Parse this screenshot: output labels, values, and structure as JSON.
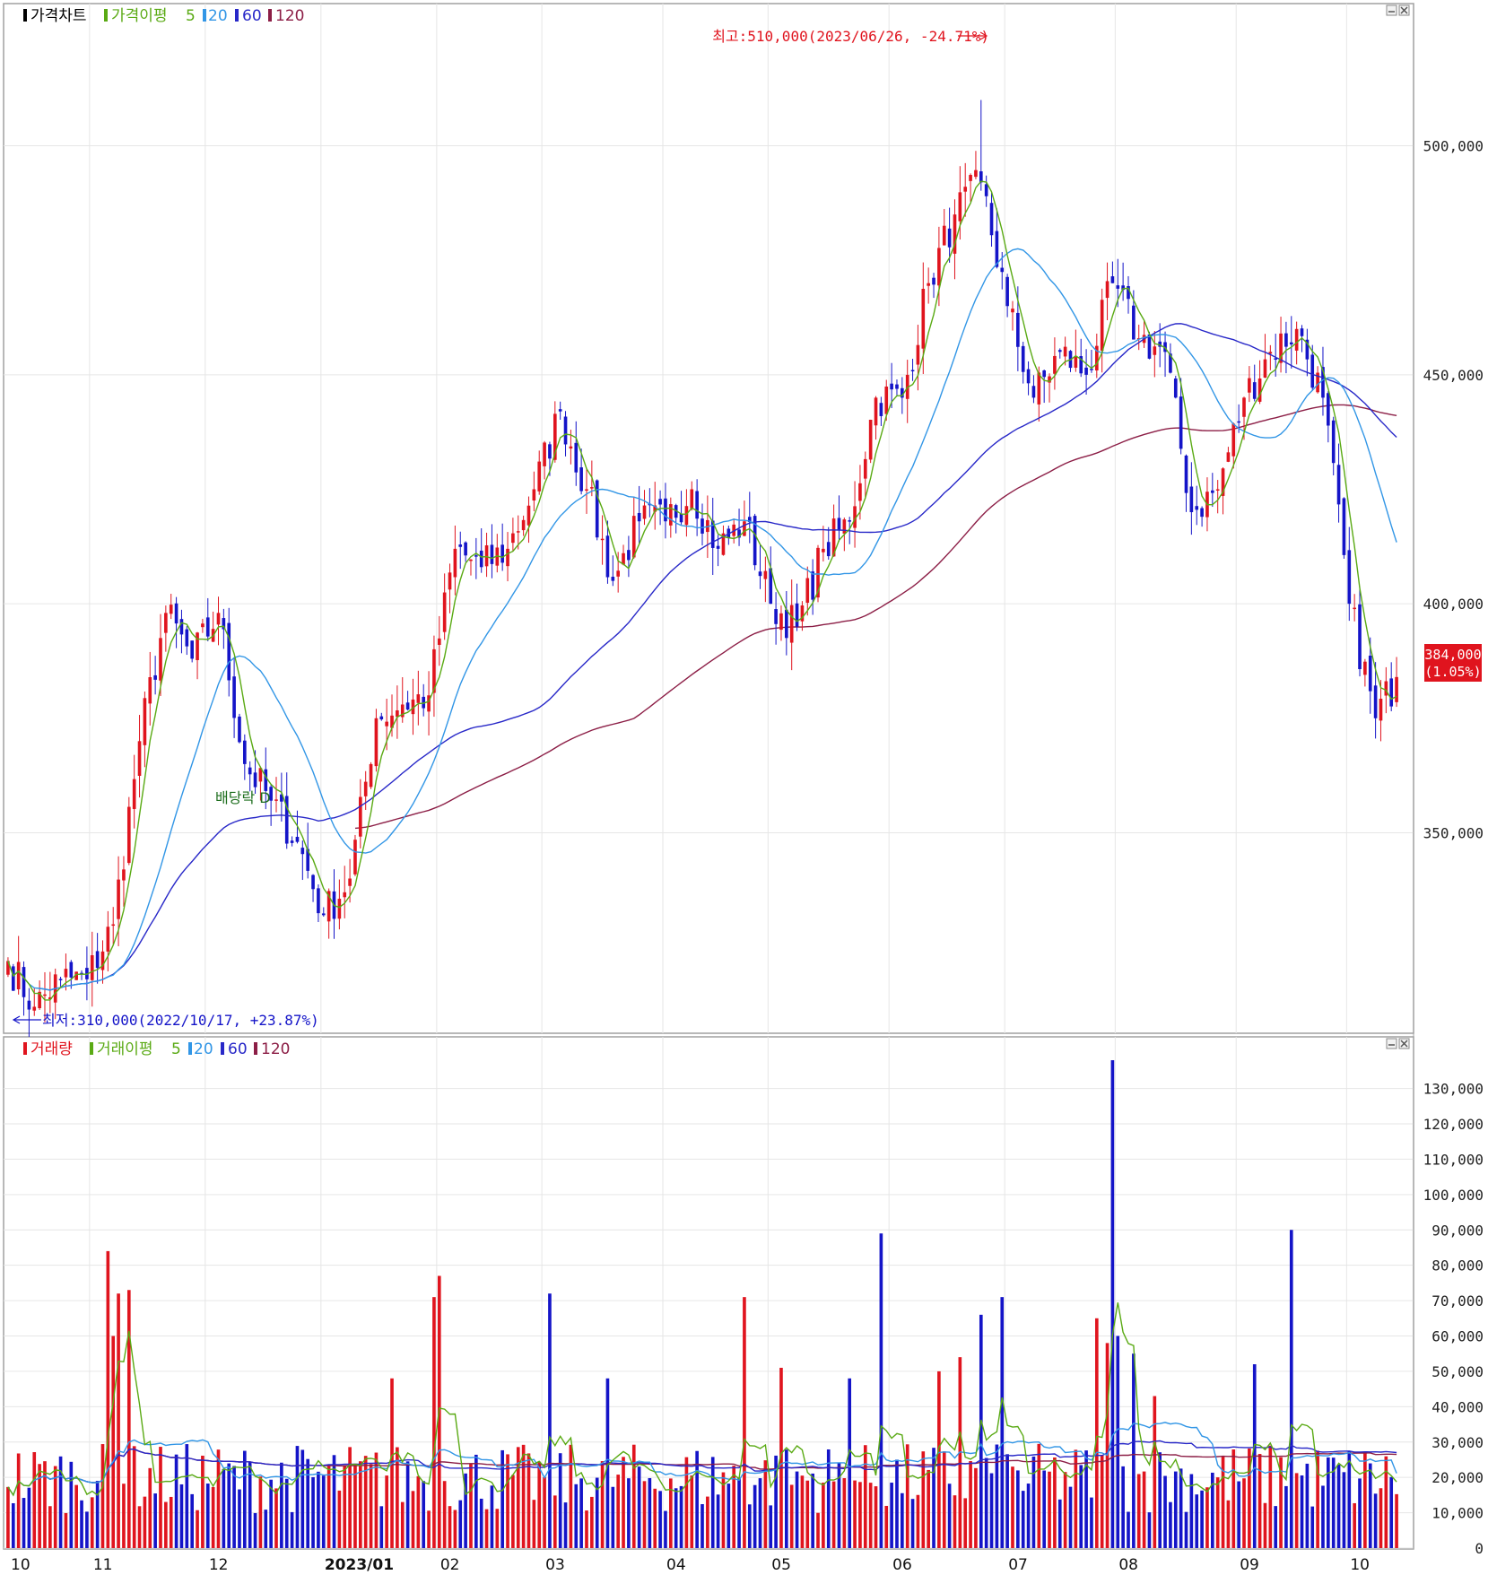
{
  "price_panel": {
    "legend": {
      "title": "가격차트",
      "ma_label": "가격이평",
      "ma_periods": [
        "5",
        "20",
        "60",
        "120"
      ]
    },
    "high_note": "최고:510,000(2023/06/26, -24.71%)",
    "low_note": "최저:310,000(2022/10/17, +23.87%)",
    "last_price": "384,000",
    "last_change": "(1.05%)",
    "marker_text": "배당락 D"
  },
  "volume_panel": {
    "legend": {
      "title": "거래량",
      "ma_label": "거래이평",
      "ma_periods": [
        "5",
        "20",
        "60",
        "120"
      ]
    }
  },
  "colors": {
    "up": "#e0141e",
    "down": "#1414c8",
    "ma5": "#5aaa14",
    "ma20": "#3296e6",
    "ma60": "#2828c8",
    "ma120": "#8c1e46",
    "grid": "#e6e6e6"
  },
  "chart_data": [
    {
      "type": "candlestick",
      "title": "가격차트",
      "y_ticks": [
        350000,
        400000,
        450000,
        500000
      ],
      "y_tick_labels": [
        "350,000",
        "400,000",
        "450,000",
        "500,000"
      ],
      "ylim": [
        307000,
        524000
      ],
      "x_tick_labels": [
        "10",
        "11",
        "12",
        "2023/01",
        "02",
        "03",
        "04",
        "05",
        "06",
        "07",
        "08",
        "09",
        "10"
      ],
      "grid": true,
      "waypoints": [
        [
          "2022-10-10",
          322000
        ],
        [
          "2022-10-17",
          312000
        ],
        [
          "2022-10-24",
          318000
        ],
        [
          "2022-10-31",
          318000
        ],
        [
          "2022-11-07",
          330000
        ],
        [
          "2022-11-14",
          370000
        ],
        [
          "2022-11-21",
          398000
        ],
        [
          "2022-11-28",
          388000
        ],
        [
          "2022-12-05",
          398000
        ],
        [
          "2022-12-12",
          365000
        ],
        [
          "2022-12-19",
          357000
        ],
        [
          "2022-12-26",
          348000
        ],
        [
          "2023-01-02",
          332000
        ],
        [
          "2023-01-09",
          340000
        ],
        [
          "2023-01-16",
          375000
        ],
        [
          "2023-01-23",
          378000
        ],
        [
          "2023-01-30",
          380000
        ],
        [
          "2023-02-06",
          412000
        ],
        [
          "2023-02-13",
          408000
        ],
        [
          "2023-02-20",
          412000
        ],
        [
          "2023-02-27",
          425000
        ],
        [
          "2023-03-06",
          442000
        ],
        [
          "2023-03-13",
          425000
        ],
        [
          "2023-03-20",
          405000
        ],
        [
          "2023-03-27",
          418000
        ],
        [
          "2023-04-03",
          418000
        ],
        [
          "2023-04-10",
          425000
        ],
        [
          "2023-04-17",
          412000
        ],
        [
          "2023-04-24",
          418000
        ],
        [
          "2023-05-01",
          400000
        ],
        [
          "2023-05-08",
          395000
        ],
        [
          "2023-05-15",
          412000
        ],
        [
          "2023-05-22",
          418000
        ],
        [
          "2023-05-29",
          445000
        ],
        [
          "2023-06-05",
          445000
        ],
        [
          "2023-06-12",
          470000
        ],
        [
          "2023-06-19",
          485000
        ],
        [
          "2023-06-26",
          492000
        ],
        [
          "2023-07-03",
          465000
        ],
        [
          "2023-07-10",
          445000
        ],
        [
          "2023-07-17",
          455000
        ],
        [
          "2023-07-24",
          450000
        ],
        [
          "2023-07-31",
          470000
        ],
        [
          "2023-08-07",
          458000
        ],
        [
          "2023-08-14",
          455000
        ],
        [
          "2023-08-21",
          420000
        ],
        [
          "2023-08-28",
          425000
        ],
        [
          "2023-09-04",
          445000
        ],
        [
          "2023-09-11",
          455000
        ],
        [
          "2023-09-18",
          460000
        ],
        [
          "2023-09-25",
          445000
        ],
        [
          "2023-10-02",
          400000
        ],
        [
          "2023-10-09",
          375000
        ],
        [
          "2023-10-13",
          384000
        ]
      ],
      "moving_averages": [
        {
          "name": "5",
          "color": "#5aaa14"
        },
        {
          "name": "20",
          "color": "#3296e6"
        },
        {
          "name": "60",
          "color": "#2828c8"
        },
        {
          "name": "120",
          "color": "#8c1e46"
        }
      ],
      "annotations": [
        {
          "text": "최고:510,000(2023/06/26, -24.71%)",
          "x": "2023-06-26",
          "y": 510000
        },
        {
          "text": "최저:310,000(2022/10/17, +23.87%)",
          "x": "2022-10-17",
          "y": 310000
        }
      ],
      "last": {
        "value": 384000,
        "change_pct": 1.05
      }
    },
    {
      "type": "bar",
      "title": "거래량",
      "y_ticks": [
        0,
        10000,
        20000,
        30000,
        40000,
        50000,
        60000,
        70000,
        80000,
        90000,
        100000,
        110000,
        120000,
        130000
      ],
      "y_tick_labels": [
        "0",
        "10,000",
        "20,000",
        "30,000",
        "40,000",
        "50,000",
        "60,000",
        "70,000",
        "80,000",
        "90,000",
        "100,000",
        "110,000",
        "120,000",
        "130,000"
      ],
      "ylim": [
        0,
        137000
      ],
      "baseline_volume": 22000,
      "spikes": [
        [
          "2022-11-04",
          84000
        ],
        [
          "2022-11-07",
          60000
        ],
        [
          "2022-11-08",
          72000
        ],
        [
          "2022-11-10",
          73000
        ],
        [
          "2023-01-19",
          48000
        ],
        [
          "2023-01-31",
          71000
        ],
        [
          "2023-02-01",
          77000
        ],
        [
          "2023-03-02",
          72000
        ],
        [
          "2023-03-17",
          48000
        ],
        [
          "2023-04-24",
          71000
        ],
        [
          "2023-05-03",
          51000
        ],
        [
          "2023-05-22",
          48000
        ],
        [
          "2023-05-30",
          89000
        ],
        [
          "2023-06-14",
          50000
        ],
        [
          "2023-06-20",
          54000
        ],
        [
          "2023-06-26",
          66000
        ],
        [
          "2023-06-30",
          71000
        ],
        [
          "2023-07-26",
          65000
        ],
        [
          "2023-07-28",
          58000
        ],
        [
          "2023-07-31",
          138000
        ],
        [
          "2023-08-01",
          60000
        ],
        [
          "2023-08-04",
          55000
        ],
        [
          "2023-08-10",
          43000
        ],
        [
          "2023-09-06",
          52000
        ],
        [
          "2023-09-15",
          90000
        ]
      ],
      "moving_averages": [
        {
          "name": "5",
          "color": "#5aaa14"
        },
        {
          "name": "20",
          "color": "#3296e6"
        },
        {
          "name": "60",
          "color": "#2828c8"
        },
        {
          "name": "120",
          "color": "#8c1e46"
        }
      ]
    }
  ]
}
